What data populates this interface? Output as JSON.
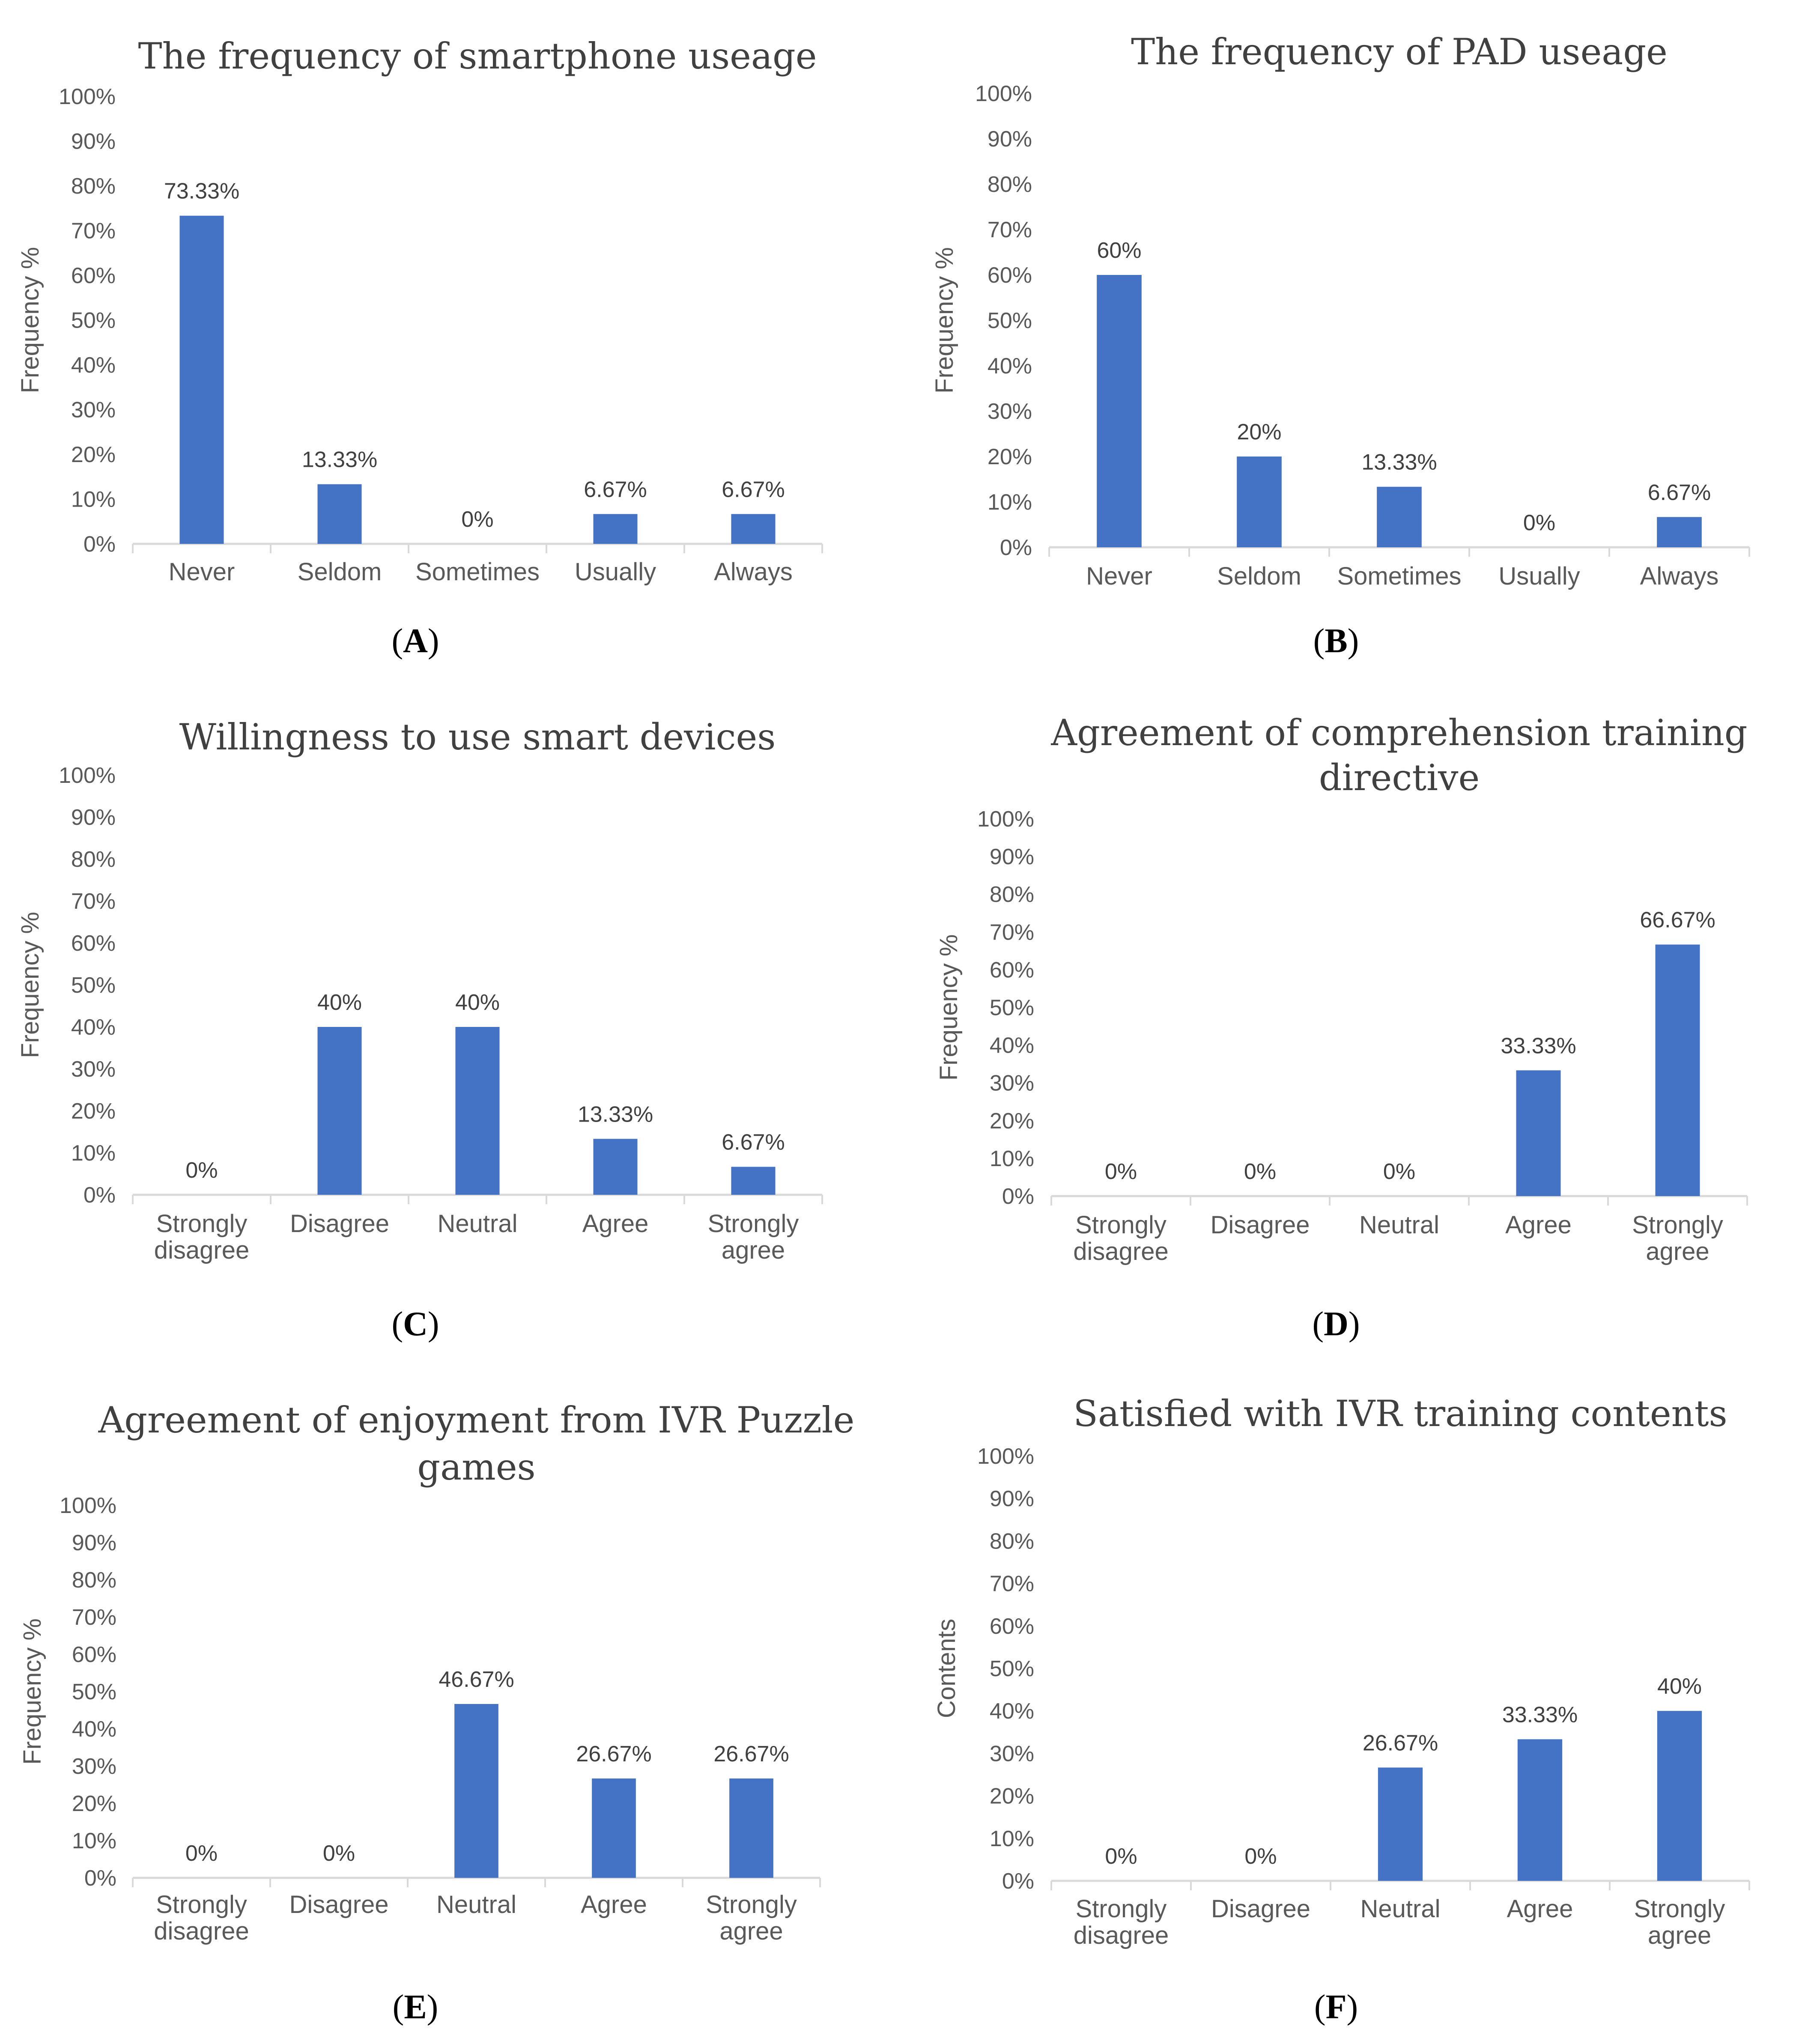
{
  "figure": {
    "bar_color": "#4472C4",
    "axis_color": "#D9D9D9"
  },
  "chart_data": [
    {
      "type": "bar",
      "panel": "A",
      "title": "The frequency  of smartphone  useage",
      "ylabel": "Frequency %",
      "xlabel": "",
      "ylim": [
        0,
        100
      ],
      "yticks": [
        "0%",
        "10%",
        "20%",
        "30%",
        "40%",
        "50%",
        "60%",
        "70%",
        "80%",
        "90%",
        "100%"
      ],
      "categories": [
        [
          "Never"
        ],
        [
          "Seldom"
        ],
        [
          "Sometimes"
        ],
        [
          "Usually"
        ],
        [
          "Always"
        ]
      ],
      "values": [
        73.33,
        13.33,
        0,
        6.67,
        6.67
      ],
      "labels": [
        "73.33%",
        "13.33%",
        "0%",
        "6.67%",
        "6.67%"
      ]
    },
    {
      "type": "bar",
      "panel": "B",
      "title": "The frequency  of PAD useage",
      "ylabel": "Frequency %",
      "xlabel": "",
      "ylim": [
        0,
        100
      ],
      "yticks": [
        "0%",
        "10%",
        "20%",
        "30%",
        "40%",
        "50%",
        "60%",
        "70%",
        "80%",
        "90%",
        "100%"
      ],
      "categories": [
        [
          "Never"
        ],
        [
          "Seldom"
        ],
        [
          "Sometimes"
        ],
        [
          "Usually"
        ],
        [
          "Always"
        ]
      ],
      "values": [
        60,
        20,
        13.33,
        0,
        6.67
      ],
      "labels": [
        "60%",
        "20%",
        "13.33%",
        "0%",
        "6.67%"
      ]
    },
    {
      "type": "bar",
      "panel": "C",
      "title": "Willingness  to use  smart  devices",
      "ylabel": "Frequency %",
      "xlabel": "",
      "ylim": [
        0,
        100
      ],
      "yticks": [
        "0%",
        "10%",
        "20%",
        "30%",
        "40%",
        "50%",
        "60%",
        "70%",
        "80%",
        "90%",
        "100%"
      ],
      "categories": [
        [
          "Strongly",
          "disagree"
        ],
        [
          "Disagree"
        ],
        [
          "Neutral"
        ],
        [
          "Agree"
        ],
        [
          "Strongly",
          "agree"
        ]
      ],
      "values": [
        0,
        40,
        40,
        13.33,
        6.67
      ],
      "labels": [
        "0%",
        "40%",
        "40%",
        "13.33%",
        "6.67%"
      ]
    },
    {
      "type": "bar",
      "panel": "D",
      "title": [
        "Agreement  of comprehension  training",
        "directive"
      ],
      "ylabel": "Frequency %",
      "xlabel": "",
      "ylim": [
        0,
        100
      ],
      "yticks": [
        "0%",
        "10%",
        "20%",
        "30%",
        "40%",
        "50%",
        "60%",
        "70%",
        "80%",
        "90%",
        "100%"
      ],
      "categories": [
        [
          "Strongly",
          "disagree"
        ],
        [
          "Disagree"
        ],
        [
          "Neutral"
        ],
        [
          "Agree"
        ],
        [
          "Strongly",
          "agree"
        ]
      ],
      "values": [
        0,
        0,
        0,
        33.33,
        66.67
      ],
      "labels": [
        "0%",
        "0%",
        "0%",
        "33.33%",
        "66.67%"
      ]
    },
    {
      "type": "bar",
      "panel": "E",
      "title": [
        "Agreement  of enjoyment  from  IVR Puzzle",
        "games"
      ],
      "ylabel": "Frequency %",
      "xlabel": "",
      "ylim": [
        0,
        100
      ],
      "yticks": [
        "0%",
        "10%",
        "20%",
        "30%",
        "40%",
        "50%",
        "60%",
        "70%",
        "80%",
        "90%",
        "100%"
      ],
      "categories": [
        [
          "Strongly",
          "disagree"
        ],
        [
          "Disagree"
        ],
        [
          "Neutral"
        ],
        [
          "Agree"
        ],
        [
          "Strongly",
          "agree"
        ]
      ],
      "values": [
        0,
        0,
        46.67,
        26.67,
        26.67
      ],
      "labels": [
        "0%",
        "0%",
        "46.67%",
        "26.67%",
        "26.67%"
      ]
    },
    {
      "type": "bar",
      "panel": "F",
      "title": "Satisfied  with  IVR training  contents",
      "ylabel": "Contents",
      "xlabel": "",
      "ylim": [
        0,
        100
      ],
      "yticks": [
        "0%",
        "10%",
        "20%",
        "30%",
        "40%",
        "50%",
        "60%",
        "70%",
        "80%",
        "90%",
        "100%"
      ],
      "categories": [
        [
          "Strongly",
          "disagree"
        ],
        [
          "Disagree"
        ],
        [
          "Neutral"
        ],
        [
          "Agree"
        ],
        [
          "Strongly",
          "agree"
        ]
      ],
      "values": [
        0,
        0,
        26.67,
        33.33,
        40
      ],
      "labels": [
        "0%",
        "0%",
        "26.67%",
        "33.33%",
        "40%"
      ]
    }
  ]
}
